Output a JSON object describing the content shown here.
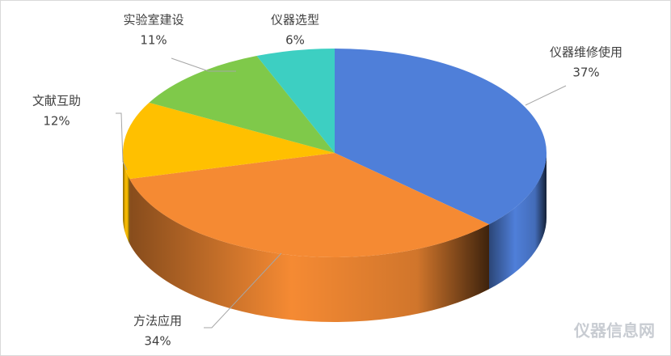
{
  "chart_data": {
    "type": "pie",
    "categories": [
      "仪器维修使用",
      "方法应用",
      "文献互助",
      "实验室建设",
      "仪器选型"
    ],
    "values": [
      37,
      34,
      12,
      11,
      6
    ],
    "value_labels": [
      "37%",
      "34%",
      "12%",
      "11%",
      "6%"
    ],
    "colors": [
      "#4f7fd9",
      "#f58a33",
      "#ffc000",
      "#7fc94a",
      "#3dcfc2"
    ],
    "watermark": "仪器信息网"
  }
}
